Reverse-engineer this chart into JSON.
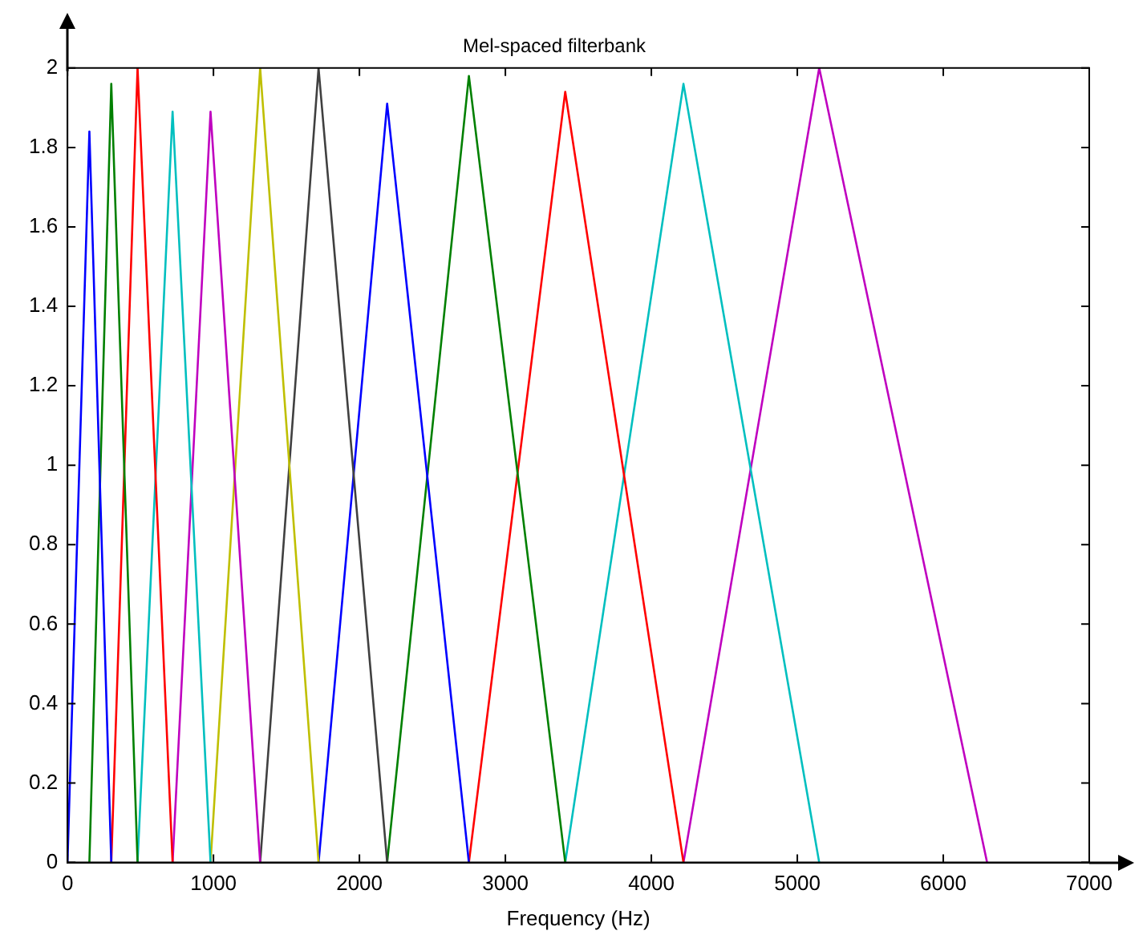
{
  "chart_data": {
    "type": "line",
    "title": "Mel-spaced filterbank",
    "xlabel": "Frequency (Hz)",
    "xlim": [
      0,
      7000
    ],
    "xticks": [
      0,
      1000,
      2000,
      3000,
      4000,
      5000,
      6000,
      7000
    ],
    "ylim": [
      0,
      2
    ],
    "yticks": [
      0,
      0.2,
      0.4,
      0.6,
      0.8,
      1,
      1.2,
      1.4,
      1.6,
      1.8,
      2
    ],
    "grid": false,
    "legend": false,
    "marker": "none",
    "line_style": "solid",
    "series": [
      {
        "color": "#0000ff",
        "x": [
          0,
          150,
          300
        ],
        "values": [
          0,
          1.84,
          0
        ]
      },
      {
        "color": "#008000",
        "x": [
          150,
          300,
          480
        ],
        "values": [
          0,
          1.96,
          0
        ]
      },
      {
        "color": "#ff0000",
        "x": [
          300,
          480,
          720
        ],
        "values": [
          0,
          2.0,
          0
        ]
      },
      {
        "color": "#00bfbf",
        "x": [
          480,
          720,
          980
        ],
        "values": [
          0,
          1.89,
          0
        ]
      },
      {
        "color": "#bf00bf",
        "x": [
          720,
          980,
          1320
        ],
        "values": [
          0,
          1.89,
          0
        ]
      },
      {
        "color": "#bfbf00",
        "x": [
          980,
          1320,
          1720
        ],
        "values": [
          0,
          2.0,
          0
        ]
      },
      {
        "color": "#404040",
        "x": [
          1320,
          1720,
          2190
        ],
        "values": [
          0,
          2.0,
          0
        ]
      },
      {
        "color": "#0000ff",
        "x": [
          1720,
          2190,
          2750
        ],
        "values": [
          0,
          1.91,
          0
        ]
      },
      {
        "color": "#008000",
        "x": [
          2190,
          2750,
          3410
        ],
        "values": [
          0,
          1.98,
          0
        ]
      },
      {
        "color": "#ff0000",
        "x": [
          2750,
          3410,
          4220
        ],
        "values": [
          0,
          1.94,
          0
        ]
      },
      {
        "color": "#00bfbf",
        "x": [
          3410,
          4220,
          5150
        ],
        "values": [
          0,
          1.96,
          0
        ]
      },
      {
        "color": "#bf00bf",
        "x": [
          4220,
          5150,
          6300
        ],
        "values": [
          0,
          2.0,
          0
        ]
      }
    ]
  }
}
